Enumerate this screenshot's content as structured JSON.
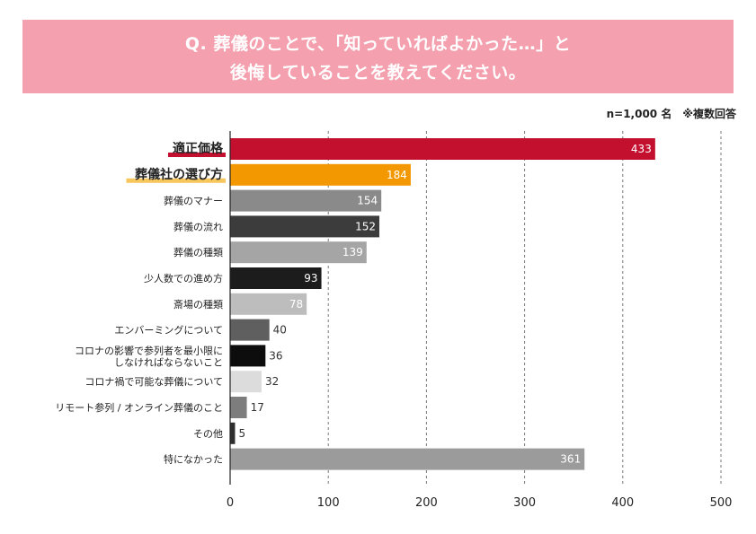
{
  "title": {
    "line1": "Q. 葬儀のことで、「知っていればよかった…」と",
    "line2": "後悔していることを教えてください。"
  },
  "note": "n=1,000 名　※複数回答",
  "colors": {
    "banner": "#f4a0ae",
    "highlight1": "#c4102f",
    "highlight2": "#f39800",
    "underline1": "#c4102f",
    "underline2": "#f7c75e"
  },
  "chart_data": {
    "type": "bar",
    "orientation": "horizontal",
    "categories": [
      "適正価格",
      "葬儀社の選び方",
      "葬儀のマナー",
      "葬儀の流れ",
      "葬儀の種類",
      "少人数での進め方",
      "斎場の種類",
      "エンバーミングについて",
      "コロナの影響で参列者を最小限にしなければならないこと",
      "コロナ禍で可能な葬儀について",
      "リモート参列 / オンライン葬儀のこと",
      "その他",
      "特になかった"
    ],
    "category_lines": [
      [
        "適正価格"
      ],
      [
        "葬儀社の選び方"
      ],
      [
        "葬儀のマナー"
      ],
      [
        "葬儀の流れ"
      ],
      [
        "葬儀の種類"
      ],
      [
        "少人数での進め方"
      ],
      [
        "斎場の種類"
      ],
      [
        "エンバーミングについて"
      ],
      [
        "コロナの影響で参列者を最小限に",
        "しなければならないこと"
      ],
      [
        "コロナ禍で可能な葬儀について"
      ],
      [
        "リモート参列 / オンライン葬儀のこと"
      ],
      [
        "その他"
      ],
      [
        "特になかった"
      ]
    ],
    "values": [
      433,
      184,
      154,
      152,
      139,
      93,
      78,
      40,
      36,
      32,
      17,
      5,
      361
    ],
    "bar_colors": [
      "#c4102f",
      "#f39800",
      "#8a8a8a",
      "#3c3c3c",
      "#a5a5a5",
      "#1c1c1c",
      "#bdbdbd",
      "#5f5f5f",
      "#0d0d0d",
      "#dcdcdc",
      "#7d7d7d",
      "#2e2e2e",
      "#9b9b9b"
    ],
    "highlighted": [
      true,
      true,
      false,
      false,
      false,
      false,
      false,
      false,
      false,
      false,
      false,
      false,
      false
    ],
    "xlim": [
      0,
      500
    ],
    "xticks": [
      0,
      100,
      200,
      300,
      400,
      500
    ],
    "grid": true,
    "xlabel": "",
    "ylabel": ""
  }
}
